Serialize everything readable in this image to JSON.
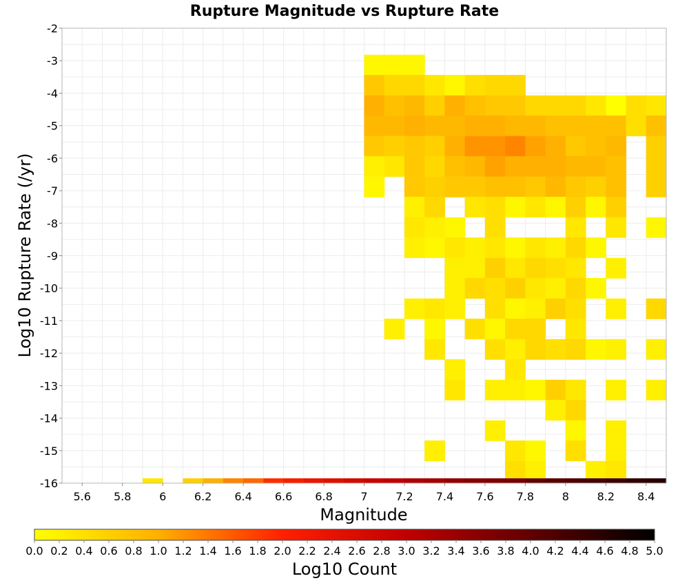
{
  "chart_data": {
    "type": "heatmap",
    "title": "Rupture Magnitude vs Rupture Rate",
    "xlabel": "Magnitude",
    "ylabel": "Log10 Rupture Rate (/yr)",
    "xlim": [
      5.5,
      8.5
    ],
    "ylim": [
      -16,
      -2
    ],
    "x_ticks": [
      5.6,
      5.8,
      6,
      6.2,
      6.4,
      6.6,
      6.8,
      7,
      7.2,
      7.4,
      7.6,
      7.8,
      8,
      8.2,
      8.4
    ],
    "x_tick_labels": [
      "5.6",
      "5.8",
      "6",
      "6.2",
      "6.4",
      "6.6",
      "6.8",
      "7",
      "7.2",
      "7.4",
      "7.6",
      "7.8",
      "8",
      "8.2",
      "8.4"
    ],
    "y_ticks": [
      -2,
      -3,
      -4,
      -5,
      -6,
      -7,
      -8,
      -9,
      -10,
      -11,
      -12,
      -13,
      -14,
      -15,
      -16
    ],
    "y_tick_labels": [
      "-2",
      "-3",
      "-4",
      "-5",
      "-6",
      "-7",
      "-8",
      "-9",
      "-10",
      "-11",
      "-12",
      "-13",
      "-14",
      "-15",
      "-16"
    ],
    "bin_width_x": 0.1,
    "bin_height_y": 0.625,
    "grid": true,
    "colorbar": {
      "label": "Log10 Count",
      "range": [
        0,
        5
      ],
      "ticks": [
        "0.0",
        "0.2",
        "0.4",
        "0.6",
        "0.8",
        "1.0",
        "1.2",
        "1.4",
        "1.6",
        "1.8",
        "2.0",
        "2.2",
        "2.4",
        "2.6",
        "2.8",
        "3.0",
        "3.2",
        "3.4",
        "3.6",
        "3.8",
        "4.0",
        "4.2",
        "4.4",
        "4.6",
        "4.8",
        "5.0"
      ],
      "colors": [
        "#ffff00",
        "#ffa500",
        "#ff0000",
        "#8b0000",
        "#000000"
      ]
    },
    "column_mags": [
      7.05,
      7.15,
      7.25,
      7.35,
      7.45,
      7.55,
      7.65,
      7.75,
      7.85,
      7.95,
      8.05,
      8.15,
      8.25,
      8.35,
      8.45
    ],
    "cells": [
      [
        -3.13,
        0.1,
        0.1,
        0.1
      ],
      [
        -3.75,
        0.7,
        0.5,
        0.5,
        0.3,
        0.1,
        0.4,
        0.5,
        0.5
      ],
      [
        -4.38,
        1.0,
        0.8,
        0.9,
        0.6,
        1.0,
        0.8,
        0.7,
        0.7,
        0.5,
        0.5,
        0.5,
        0.3,
        0.0,
        0.4,
        0.3
      ],
      [
        -5.0,
        0.9,
        0.9,
        1.0,
        0.9,
        0.9,
        1.0,
        1.0,
        0.9,
        0.9,
        0.8,
        0.8,
        0.8,
        0.8,
        0.4,
        0.8
      ],
      [
        -5.63,
        0.7,
        0.6,
        0.7,
        0.6,
        1.0,
        1.2,
        1.2,
        1.3,
        1.1,
        1.0,
        0.7,
        0.8,
        0.9,
        null,
        0.6
      ],
      [
        -6.25,
        0.2,
        0.3,
        0.7,
        0.5,
        0.8,
        0.9,
        1.1,
        1.0,
        1.0,
        1.0,
        0.9,
        0.9,
        0.8,
        null,
        0.6
      ],
      [
        -6.88,
        0.1,
        null,
        0.7,
        0.6,
        0.7,
        0.7,
        0.8,
        0.8,
        0.7,
        0.9,
        0.7,
        0.6,
        0.8,
        null,
        0.6
      ],
      [
        -7.5,
        null,
        null,
        0.2,
        0.5,
        null,
        0.3,
        0.4,
        0.1,
        0.3,
        0.1,
        0.6,
        0.1,
        0.6
      ],
      [
        -8.13,
        null,
        null,
        0.3,
        0.2,
        0.1,
        null,
        0.4,
        null,
        null,
        null,
        0.3,
        null,
        0.3,
        null,
        0.1
      ],
      [
        -8.75,
        null,
        null,
        0.2,
        0.1,
        0.3,
        0.2,
        0.3,
        0.1,
        0.3,
        0.2,
        0.5,
        0.1
      ],
      [
        -9.38,
        null,
        null,
        null,
        null,
        0.2,
        0.2,
        0.6,
        0.3,
        0.5,
        0.4,
        0.3,
        null,
        0.2
      ],
      [
        -10.0,
        null,
        null,
        null,
        null,
        0.2,
        0.5,
        0.4,
        0.6,
        0.3,
        0.2,
        0.5,
        0.1
      ],
      [
        -10.63,
        null,
        null,
        0.2,
        0.3,
        0.2,
        null,
        0.4,
        0.1,
        0.2,
        0.6,
        0.4,
        null,
        0.2,
        null,
        0.5
      ],
      [
        -11.25,
        null,
        0.2,
        null,
        0.1,
        null,
        0.4,
        0.1,
        0.5,
        0.5,
        null,
        0.3
      ],
      [
        -11.88,
        null,
        null,
        null,
        0.3,
        null,
        null,
        0.4,
        0.2,
        0.5,
        0.4,
        0.5,
        0.1,
        0.2,
        null,
        0.2
      ],
      [
        -12.5,
        null,
        null,
        null,
        null,
        0.2,
        null,
        null,
        0.3
      ],
      [
        -13.13,
        null,
        null,
        null,
        null,
        0.3,
        null,
        0.2,
        0.2,
        0.1,
        0.6,
        0.3,
        null,
        0.2,
        null,
        0.2
      ],
      [
        -13.75,
        null,
        null,
        null,
        null,
        null,
        null,
        null,
        null,
        null,
        0.2,
        0.5
      ],
      [
        -14.38,
        null,
        null,
        null,
        null,
        null,
        null,
        0.2,
        null,
        null,
        null,
        0.1,
        null,
        0.2
      ],
      [
        -15.0,
        null,
        null,
        null,
        0.2,
        null,
        null,
        null,
        0.3,
        0.1,
        null,
        0.4,
        null,
        0.2
      ],
      [
        -15.63,
        null,
        null,
        null,
        null,
        null,
        null,
        null,
        0.4,
        0.2,
        null,
        null,
        0.2,
        0.3
      ]
    ],
    "bottom_row": {
      "y": -16,
      "mags": [
        5.95,
        6.15,
        6.25,
        6.35,
        6.45,
        6.55,
        6.65,
        6.75,
        6.85,
        6.95,
        7.05,
        7.15,
        7.25,
        7.35,
        7.45,
        7.55,
        7.65,
        7.75,
        7.85,
        7.95,
        8.05,
        8.15,
        8.25,
        8.35,
        8.45
      ],
      "values": [
        0.3,
        0.6,
        1.0,
        1.3,
        1.5,
        1.9,
        2.1,
        2.3,
        2.5,
        2.7,
        2.9,
        3.0,
        3.2,
        3.3,
        3.5,
        3.6,
        3.7,
        3.8,
        4.0,
        4.1,
        4.2,
        4.3,
        4.4,
        4.5,
        4.6
      ]
    }
  }
}
